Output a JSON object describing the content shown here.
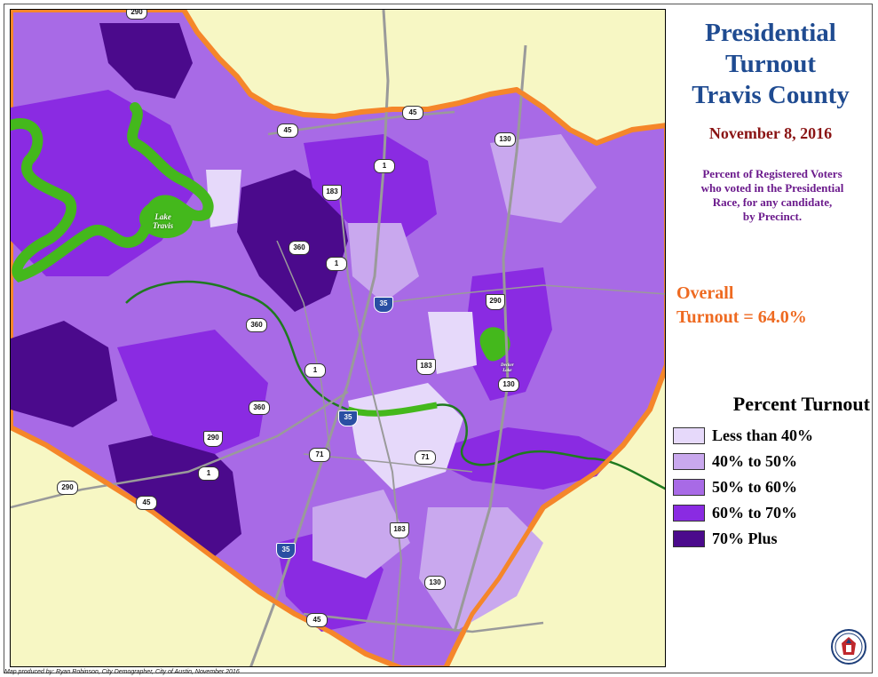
{
  "title": {
    "line1": "Presidential",
    "line2": "Turnout",
    "line3": "Travis County"
  },
  "date": "November 8, 2016",
  "description": {
    "line1": "Percent of Registered Voters",
    "line2": "who voted in the Presidential",
    "line3": "Race, for any candidate,",
    "line4": "by Precinct."
  },
  "overall": {
    "line1": "Overall",
    "line2": "Turnout = 64.0%"
  },
  "legend": {
    "title": "Percent Turnout",
    "items": [
      {
        "label": "Less than 40%",
        "color": "#e6d9fa"
      },
      {
        "label": "40% to 50%",
        "color": "#c9a8ee"
      },
      {
        "label": "50% to 60%",
        "color": "#a86ae6"
      },
      {
        "label": "60% to 70%",
        "color": "#8a2be2"
      },
      {
        "label": "70% Plus",
        "color": "#4b0a8c"
      }
    ]
  },
  "map": {
    "lakes": [
      {
        "line1": "Lake",
        "line2": "Travis"
      },
      {
        "line1": "Decker",
        "line2": "Lake"
      }
    ],
    "highway_markers": [
      "290",
      "45",
      "45",
      "1",
      "183",
      "130",
      "360",
      "1",
      "35",
      "290",
      "360",
      "183",
      "1",
      "130",
      "360",
      "35",
      "290",
      "71",
      "71",
      "1",
      "45",
      "290",
      "183",
      "35",
      "130",
      "45"
    ],
    "colors": {
      "outside_county": "#f7f7c4",
      "county_border": "#f5862a",
      "water": "#44b81c",
      "roads": "#9a9a9a"
    }
  },
  "credit": "Map produced by:  Ryan Robinson, City Demographer, City of Austin, November 2016"
}
